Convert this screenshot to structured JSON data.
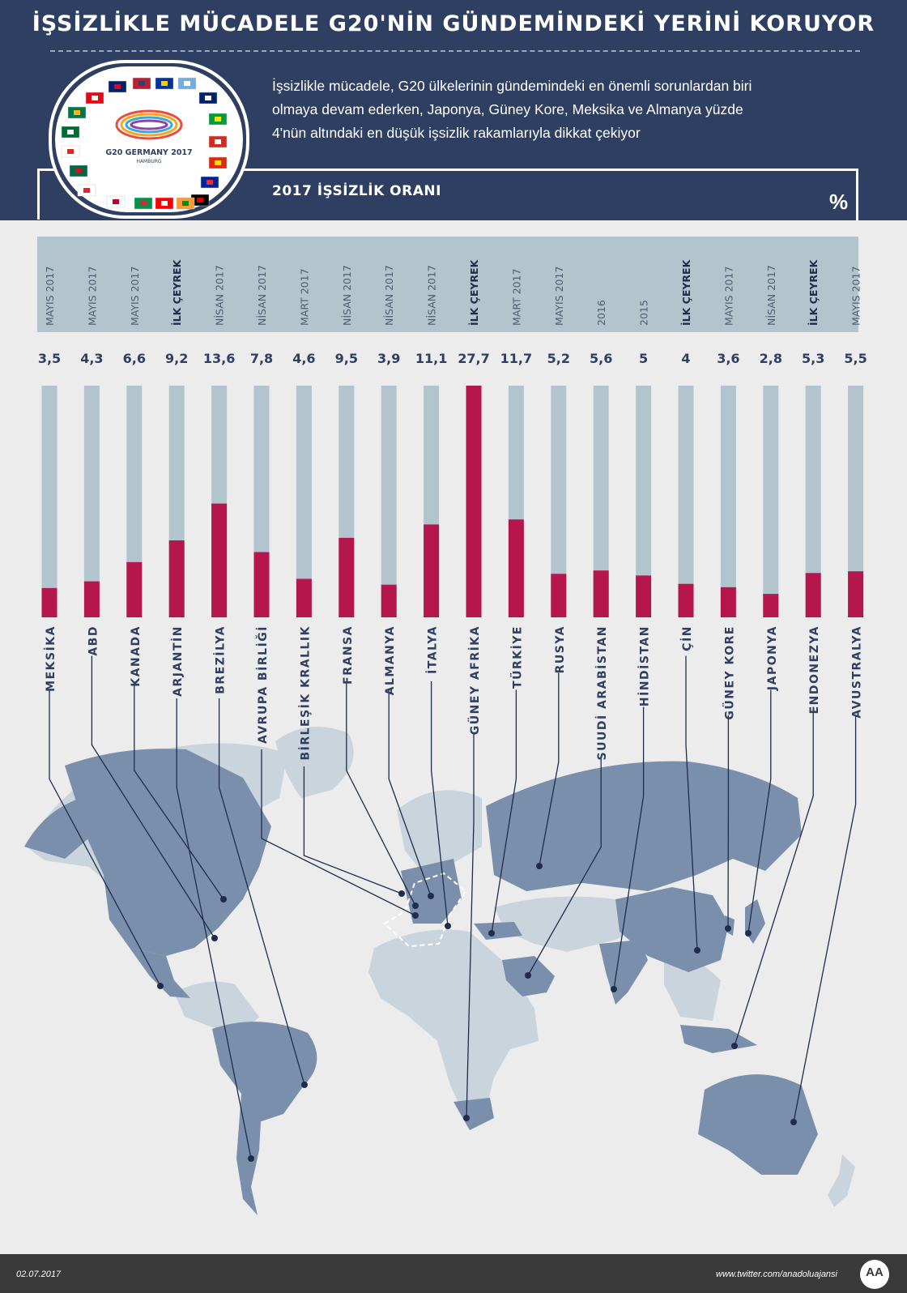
{
  "header": {
    "title": "İŞSİZLİKLE MÜCADELE G20'NİN GÜNDEMİNDEKİ YERİNİ KORUYOR",
    "description_lines": [
      "İşsizlikle mücadele, G20 ülkelerinin gündemindeki en önemli sorunlardan biri",
      "olmaya devam ederken, Japonya, Güney Kore, Meksika ve Almanya yüzde",
      "4'nün altındaki en düşük işsizlik rakamlarıyla dikkat çekiyor"
    ],
    "band_label": "2017 İŞSİZLİK ORANI",
    "unit": "%"
  },
  "logo": {
    "line1": "G20 GERMANY 2017",
    "line2": "HAMBURG"
  },
  "chart_data": {
    "type": "bar",
    "title": "2017 İŞSİZLİK ORANI",
    "ylabel": "%",
    "ylim": [
      0,
      27.7
    ],
    "categories": [
      "MEKSİKA",
      "ABD",
      "KANADA",
      "ARJANTİN",
      "BREZİLYA",
      "AVRUPA BİRLİĞİ",
      "BİRLEŞİK KRALLIK",
      "FRANSA",
      "ALMANYA",
      "İTALYA",
      "GÜNEY AFRİKA",
      "TÜRKİYE",
      "RUSYA",
      "SUUDİ ARABİSTAN",
      "HİNDİSTAN",
      "ÇİN",
      "GÜNEY KORE",
      "JAPONYA",
      "ENDONEZYA",
      "AVUSTRALYA"
    ],
    "periods": [
      "MAYIS 2017",
      "MAYIS 2017",
      "MAYIS 2017",
      "İLK ÇEYREK",
      "NİSAN 2017",
      "NİSAN 2017",
      "MART 2017",
      "NİSAN 2017",
      "NİSAN 2017",
      "NİSAN 2017",
      "İLK ÇEYREK",
      "MART 2017",
      "MAYIS 2017",
      "2016",
      "2015",
      "İLK ÇEYREK",
      "MAYIS 2017",
      "NİSAN 2017",
      "İLK ÇEYREK",
      "MAYIS 2017"
    ],
    "values": [
      3.5,
      4.3,
      6.6,
      9.2,
      13.6,
      7.8,
      4.6,
      9.5,
      3.9,
      11.1,
      27.7,
      11.7,
      5.2,
      5.6,
      5,
      4,
      3.6,
      2.8,
      5.3,
      5.5
    ],
    "value_labels": [
      "3,5",
      "4,3",
      "6,6",
      "9,2",
      "13,6",
      "7,8",
      "4,6",
      "9,5",
      "3,9",
      "11,1",
      "27,7",
      "11,7",
      "5,2",
      "5,6",
      "5",
      "4",
      "3,6",
      "2,8",
      "5,3",
      "5,5"
    ]
  },
  "colors": {
    "header_bg": "#2e3f62",
    "bar_fill": "#b5174d",
    "bar_track": "#b2c4cc",
    "period_strip": "#b2c4cc",
    "g20_land": "#7a8fac",
    "other_land": "#c9d4dc",
    "leader": "#1f2d4a"
  },
  "footer": {
    "date": "02.07.2017",
    "website": "www.twitter.com/anadoluajansi",
    "logo_text": "AA"
  }
}
